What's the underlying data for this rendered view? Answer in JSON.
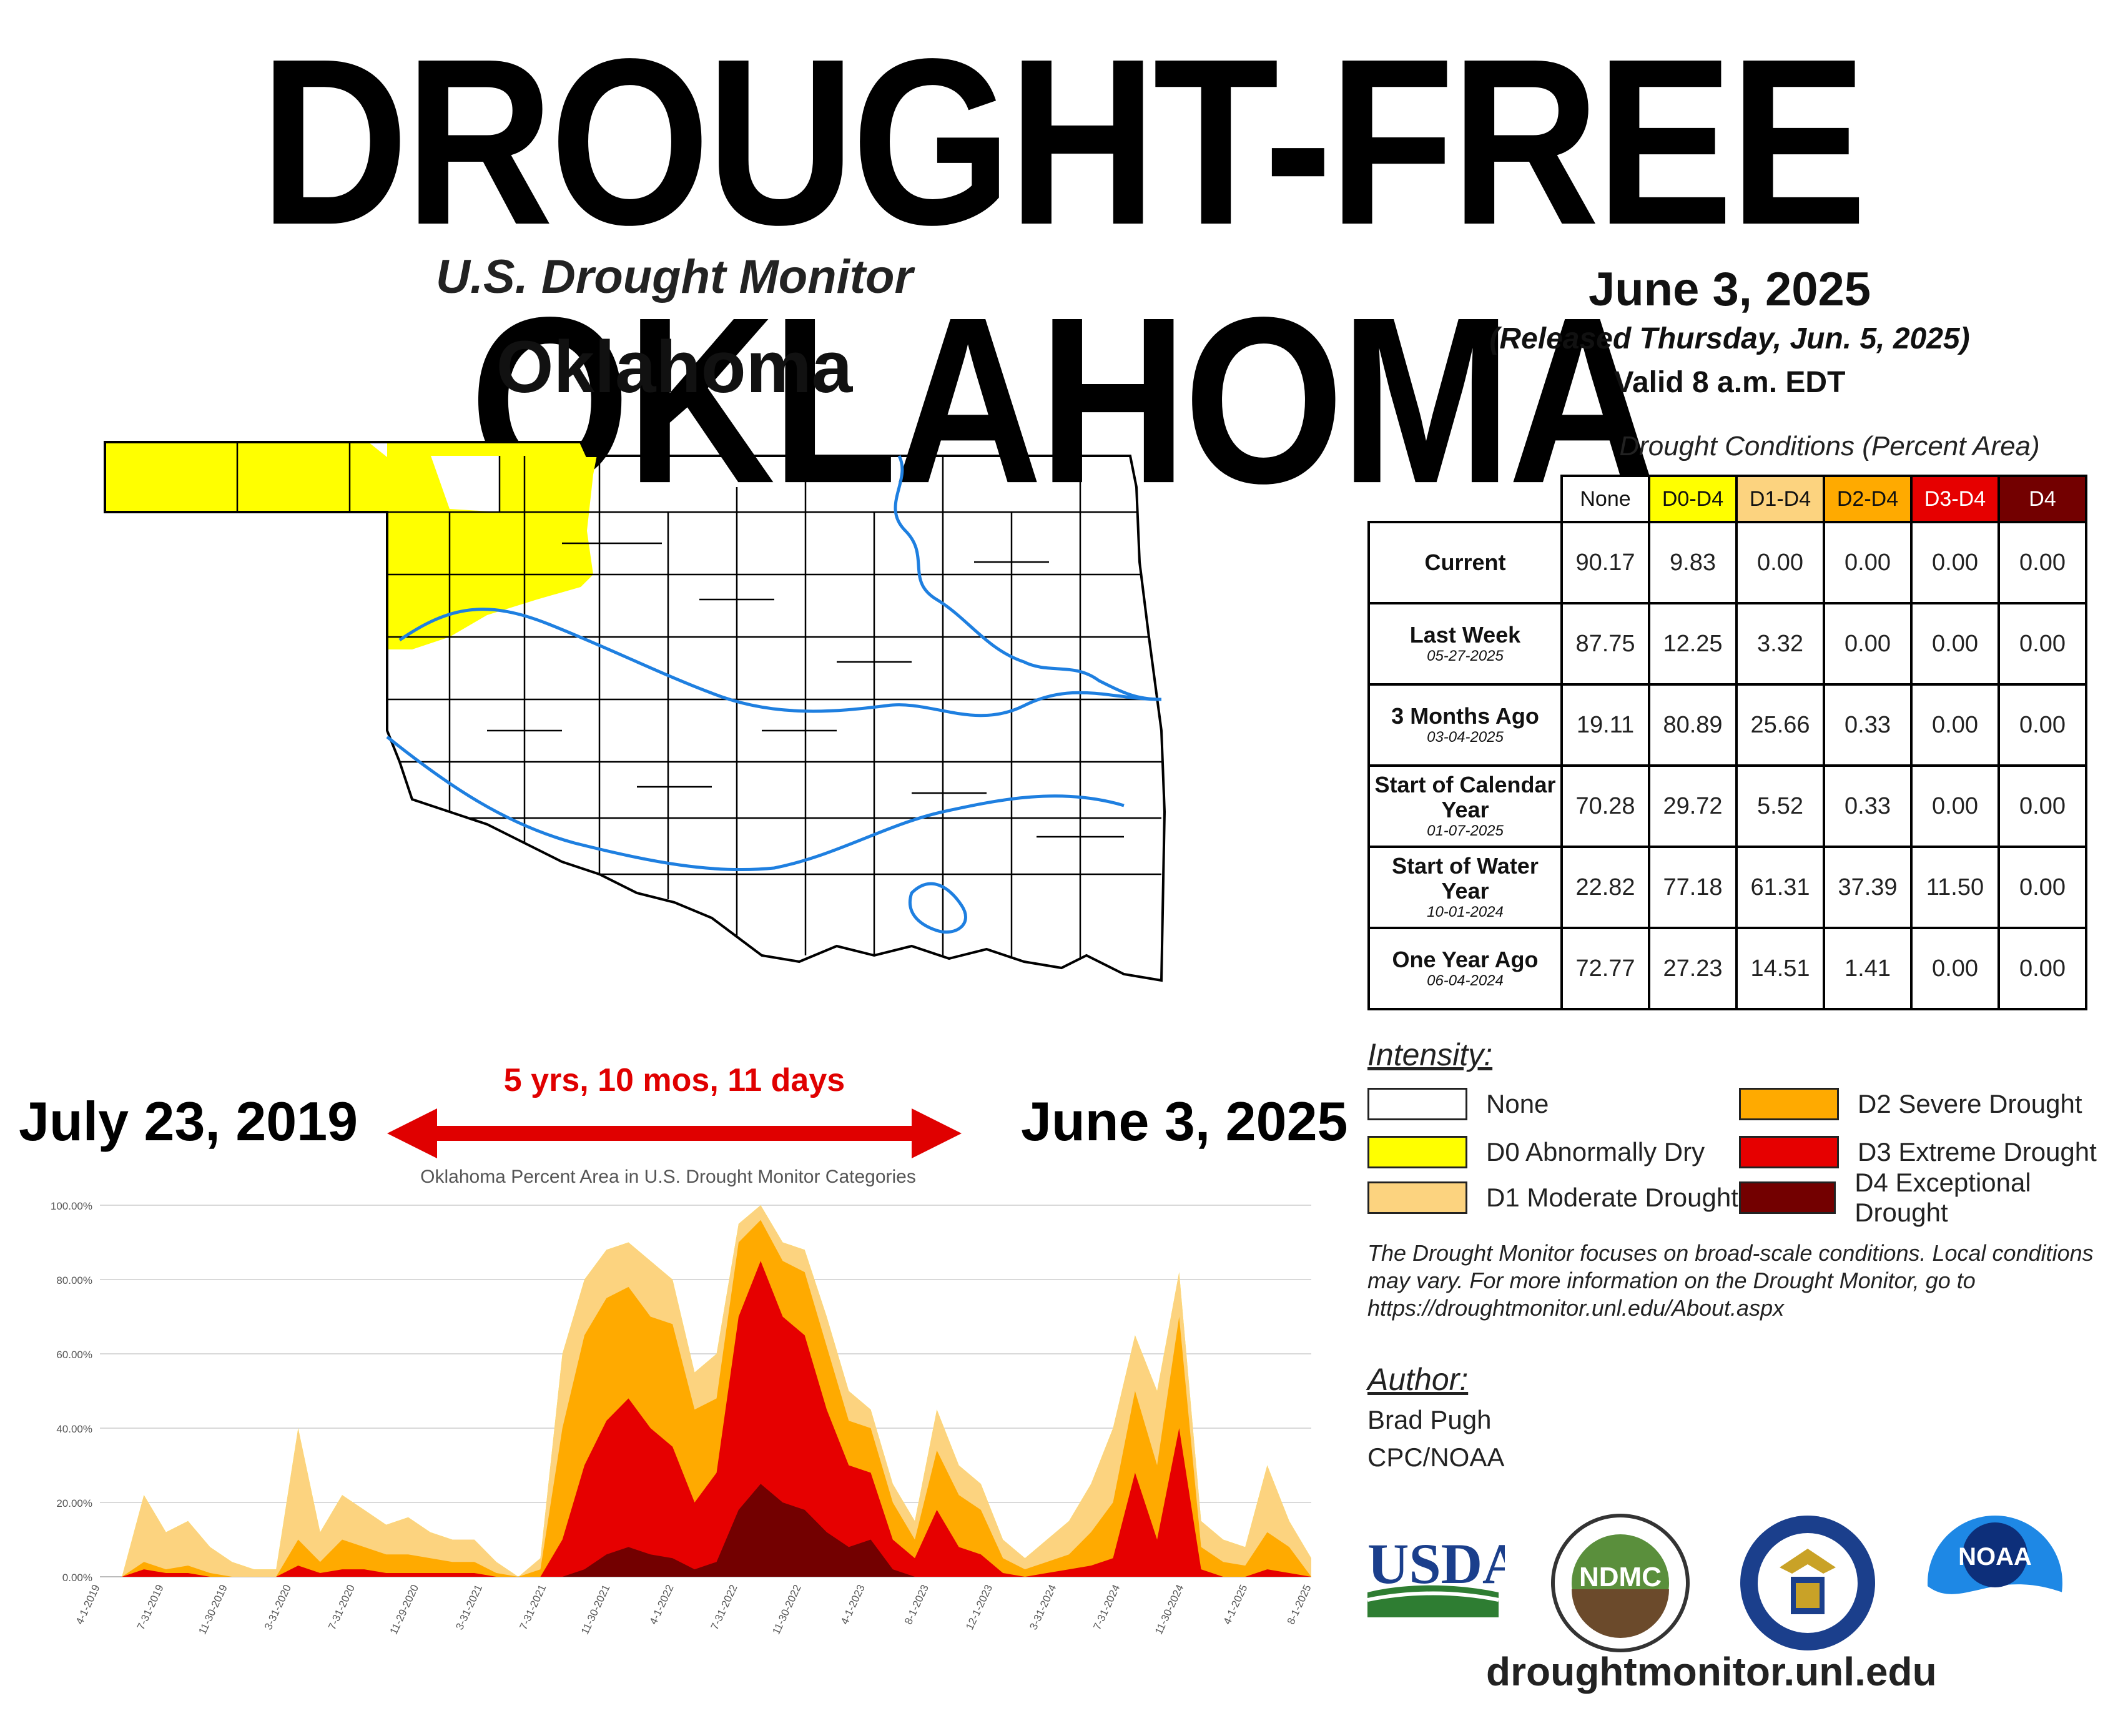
{
  "headline": "DROUGHT-FREE OKLAHOMA",
  "map": {
    "title": "U.S. Drought Monitor",
    "state": "Oklahoma",
    "colors": {
      "d0": "#ffff00",
      "river": "#1e7fe0",
      "outline": "#000000"
    }
  },
  "release": {
    "date": "June 3, 2025",
    "released": "(Released Thursday, Jun. 5, 2025)",
    "valid": "Valid 8 a.m. EDT"
  },
  "conditions_table": {
    "caption": "Drought Conditions (Percent Area)",
    "columns": [
      {
        "label": "None",
        "color": "#ffffff",
        "text_color": "#111111"
      },
      {
        "label": "D0-D4",
        "color": "#ffff00",
        "text_color": "#111111"
      },
      {
        "label": "D1-D4",
        "color": "#fcd37f",
        "text_color": "#111111"
      },
      {
        "label": "D2-D4",
        "color": "#ffaa00",
        "text_color": "#111111"
      },
      {
        "label": "D3-D4",
        "color": "#e60000",
        "text_color": "#ffffff"
      },
      {
        "label": "D4",
        "color": "#730000",
        "text_color": "#ffffff"
      }
    ],
    "rows": [
      {
        "label": "Current",
        "sub": "",
        "values": [
          "90.17",
          "9.83",
          "0.00",
          "0.00",
          "0.00",
          "0.00"
        ]
      },
      {
        "label": "Last Week",
        "sub": "05-27-2025",
        "values": [
          "87.75",
          "12.25",
          "3.32",
          "0.00",
          "0.00",
          "0.00"
        ]
      },
      {
        "label": "3 Months Ago",
        "sub": "03-04-2025",
        "values": [
          "19.11",
          "80.89",
          "25.66",
          "0.33",
          "0.00",
          "0.00"
        ]
      },
      {
        "label": "Start of Calendar Year",
        "sub": "01-07-2025",
        "values": [
          "70.28",
          "29.72",
          "5.52",
          "0.33",
          "0.00",
          "0.00"
        ]
      },
      {
        "label": "Start of Water Year",
        "sub": "10-01-2024",
        "values": [
          "22.82",
          "77.18",
          "61.31",
          "37.39",
          "11.50",
          "0.00"
        ]
      },
      {
        "label": "One Year Ago",
        "sub": "06-04-2024",
        "values": [
          "72.77",
          "27.23",
          "14.51",
          "1.41",
          "0.00",
          "0.00"
        ]
      }
    ]
  },
  "intensity": {
    "title": "Intensity:",
    "items": [
      {
        "label": "None",
        "color": "#ffffff"
      },
      {
        "label": "D0 Abnormally Dry",
        "color": "#ffff00"
      },
      {
        "label": "D1 Moderate Drought",
        "color": "#fcd37f"
      },
      {
        "label": "D2 Severe Drought",
        "color": "#ffaa00"
      },
      {
        "label": "D3 Extreme Drought",
        "color": "#e60000"
      },
      {
        "label": "D4 Exceptional Drought",
        "color": "#730000"
      }
    ]
  },
  "note": "The Drought Monitor focuses on broad-scale conditions. Local conditions may vary. For more information on the Drought Monitor, go to https://droughtmonitor.unl.edu/About.aspx",
  "author": {
    "title": "Author:",
    "name": "Brad Pugh",
    "org": "CPC/NOAA"
  },
  "logos": [
    {
      "name": "usda-logo",
      "text": "USDA"
    },
    {
      "name": "ndmc-logo",
      "text": "NDMC"
    },
    {
      "name": "commerce-seal-logo",
      "text": ""
    },
    {
      "name": "noaa-logo",
      "text": "NOAA"
    }
  ],
  "site": "droughtmonitor.unl.edu",
  "timeline": {
    "start": "July 23, 2019",
    "end": "June 3, 2025",
    "duration": "5 yrs, 10 mos, 11 days",
    "arrow_color": "#e00000"
  },
  "chart_data": {
    "type": "area",
    "title": "Oklahoma Percent Area in U.S. Drought Monitor Categories",
    "xlabel": "",
    "ylabel": "",
    "ylim": [
      0,
      100
    ],
    "y_ticks": [
      "0.00%",
      "20.00%",
      "40.00%",
      "60.00%",
      "80.00%",
      "100.00%"
    ],
    "x_ticks": [
      "4-1-2019",
      "7-31-2019",
      "11-30-2019",
      "3-31-2020",
      "7-31-2020",
      "11-29-2020",
      "3-31-2021",
      "7-31-2021",
      "11-30-2021",
      "4-1-2022",
      "7-31-2022",
      "11-30-2022",
      "4-1-2023",
      "8-1-2023",
      "12-1-2023",
      "3-31-2024",
      "7-31-2024",
      "11-30-2024",
      "4-1-2025",
      "8-1-2025"
    ],
    "grid": true,
    "x": [
      "4-1-2019",
      "6-1-2019",
      "7-31-2019",
      "9-1-2019",
      "10-1-2019",
      "11-30-2019",
      "1-1-2020",
      "2-1-2020",
      "3-31-2020",
      "5-1-2020",
      "6-1-2020",
      "7-31-2020",
      "9-1-2020",
      "10-1-2020",
      "11-29-2020",
      "1-1-2021",
      "2-1-2021",
      "3-31-2021",
      "5-1-2021",
      "6-1-2021",
      "7-31-2021",
      "9-1-2021",
      "10-1-2021",
      "11-30-2021",
      "1-1-2022",
      "2-1-2022",
      "4-1-2022",
      "5-1-2022",
      "6-1-2022",
      "7-31-2022",
      "9-1-2022",
      "10-1-2022",
      "11-30-2022",
      "1-1-2023",
      "2-1-2023",
      "4-1-2023",
      "5-1-2023",
      "6-1-2023",
      "8-1-2023",
      "9-1-2023",
      "10-1-2023",
      "12-1-2023",
      "1-1-2024",
      "2-1-2024",
      "3-31-2024",
      "5-1-2024",
      "6-1-2024",
      "7-31-2024",
      "9-1-2024",
      "10-1-2024",
      "11-30-2024",
      "1-1-2025",
      "2-1-2025",
      "4-1-2025",
      "5-1-2025",
      "6-1-2025"
    ],
    "series": [
      {
        "name": "D0 Abnormally Dry",
        "color": "#ffff00",
        "values": [
          0,
          0,
          22,
          12,
          15,
          8,
          4,
          2,
          2,
          40,
          12,
          22,
          18,
          14,
          16,
          12,
          10,
          10,
          4,
          0,
          5,
          60,
          80,
          88,
          90,
          85,
          80,
          55,
          60,
          95,
          100,
          90,
          88,
          70,
          50,
          45,
          25,
          15,
          45,
          30,
          25,
          10,
          5,
          10,
          15,
          25,
          40,
          65,
          50,
          82,
          15,
          10,
          8,
          30,
          15,
          5
        ]
      },
      {
        "name": "D1 Moderate Drought",
        "color": "#fcd37f",
        "values": [
          0,
          0,
          22,
          12,
          15,
          8,
          4,
          2,
          2,
          40,
          12,
          22,
          18,
          14,
          16,
          12,
          10,
          10,
          4,
          0,
          5,
          60,
          80,
          88,
          90,
          85,
          80,
          55,
          60,
          95,
          100,
          90,
          88,
          70,
          50,
          45,
          25,
          15,
          45,
          30,
          25,
          10,
          5,
          10,
          15,
          25,
          40,
          65,
          50,
          82,
          15,
          10,
          8,
          30,
          15,
          5
        ]
      },
      {
        "name": "D2 Severe Drought",
        "color": "#ffaa00",
        "values": [
          0,
          0,
          4,
          2,
          3,
          1,
          0,
          0,
          0,
          10,
          4,
          10,
          8,
          6,
          6,
          5,
          4,
          4,
          1,
          0,
          2,
          40,
          65,
          75,
          78,
          70,
          68,
          45,
          48,
          90,
          96,
          85,
          82,
          62,
          42,
          40,
          20,
          10,
          34,
          22,
          18,
          5,
          2,
          4,
          6,
          12,
          20,
          50,
          30,
          70,
          8,
          4,
          3,
          12,
          8,
          0
        ]
      },
      {
        "name": "D3 Extreme Drought",
        "color": "#e60000",
        "values": [
          0,
          0,
          2,
          1,
          1,
          0,
          0,
          0,
          0,
          3,
          1,
          2,
          2,
          1,
          1,
          1,
          1,
          1,
          0,
          0,
          0,
          10,
          30,
          42,
          48,
          40,
          35,
          20,
          28,
          70,
          85,
          70,
          65,
          45,
          30,
          28,
          10,
          5,
          18,
          8,
          6,
          1,
          0,
          1,
          2,
          3,
          5,
          28,
          10,
          40,
          2,
          0,
          0,
          2,
          1,
          0
        ]
      },
      {
        "name": "D4 Exceptional Drought",
        "color": "#730000",
        "values": [
          0,
          0,
          0,
          0,
          0,
          0,
          0,
          0,
          0,
          0,
          0,
          0,
          0,
          0,
          0,
          0,
          0,
          0,
          0,
          0,
          0,
          0,
          2,
          6,
          8,
          6,
          5,
          2,
          4,
          18,
          25,
          20,
          18,
          12,
          8,
          10,
          2,
          0,
          0,
          0,
          0,
          0,
          0,
          0,
          0,
          0,
          0,
          0,
          0,
          0,
          0,
          0,
          0,
          0,
          0,
          0
        ]
      }
    ]
  }
}
